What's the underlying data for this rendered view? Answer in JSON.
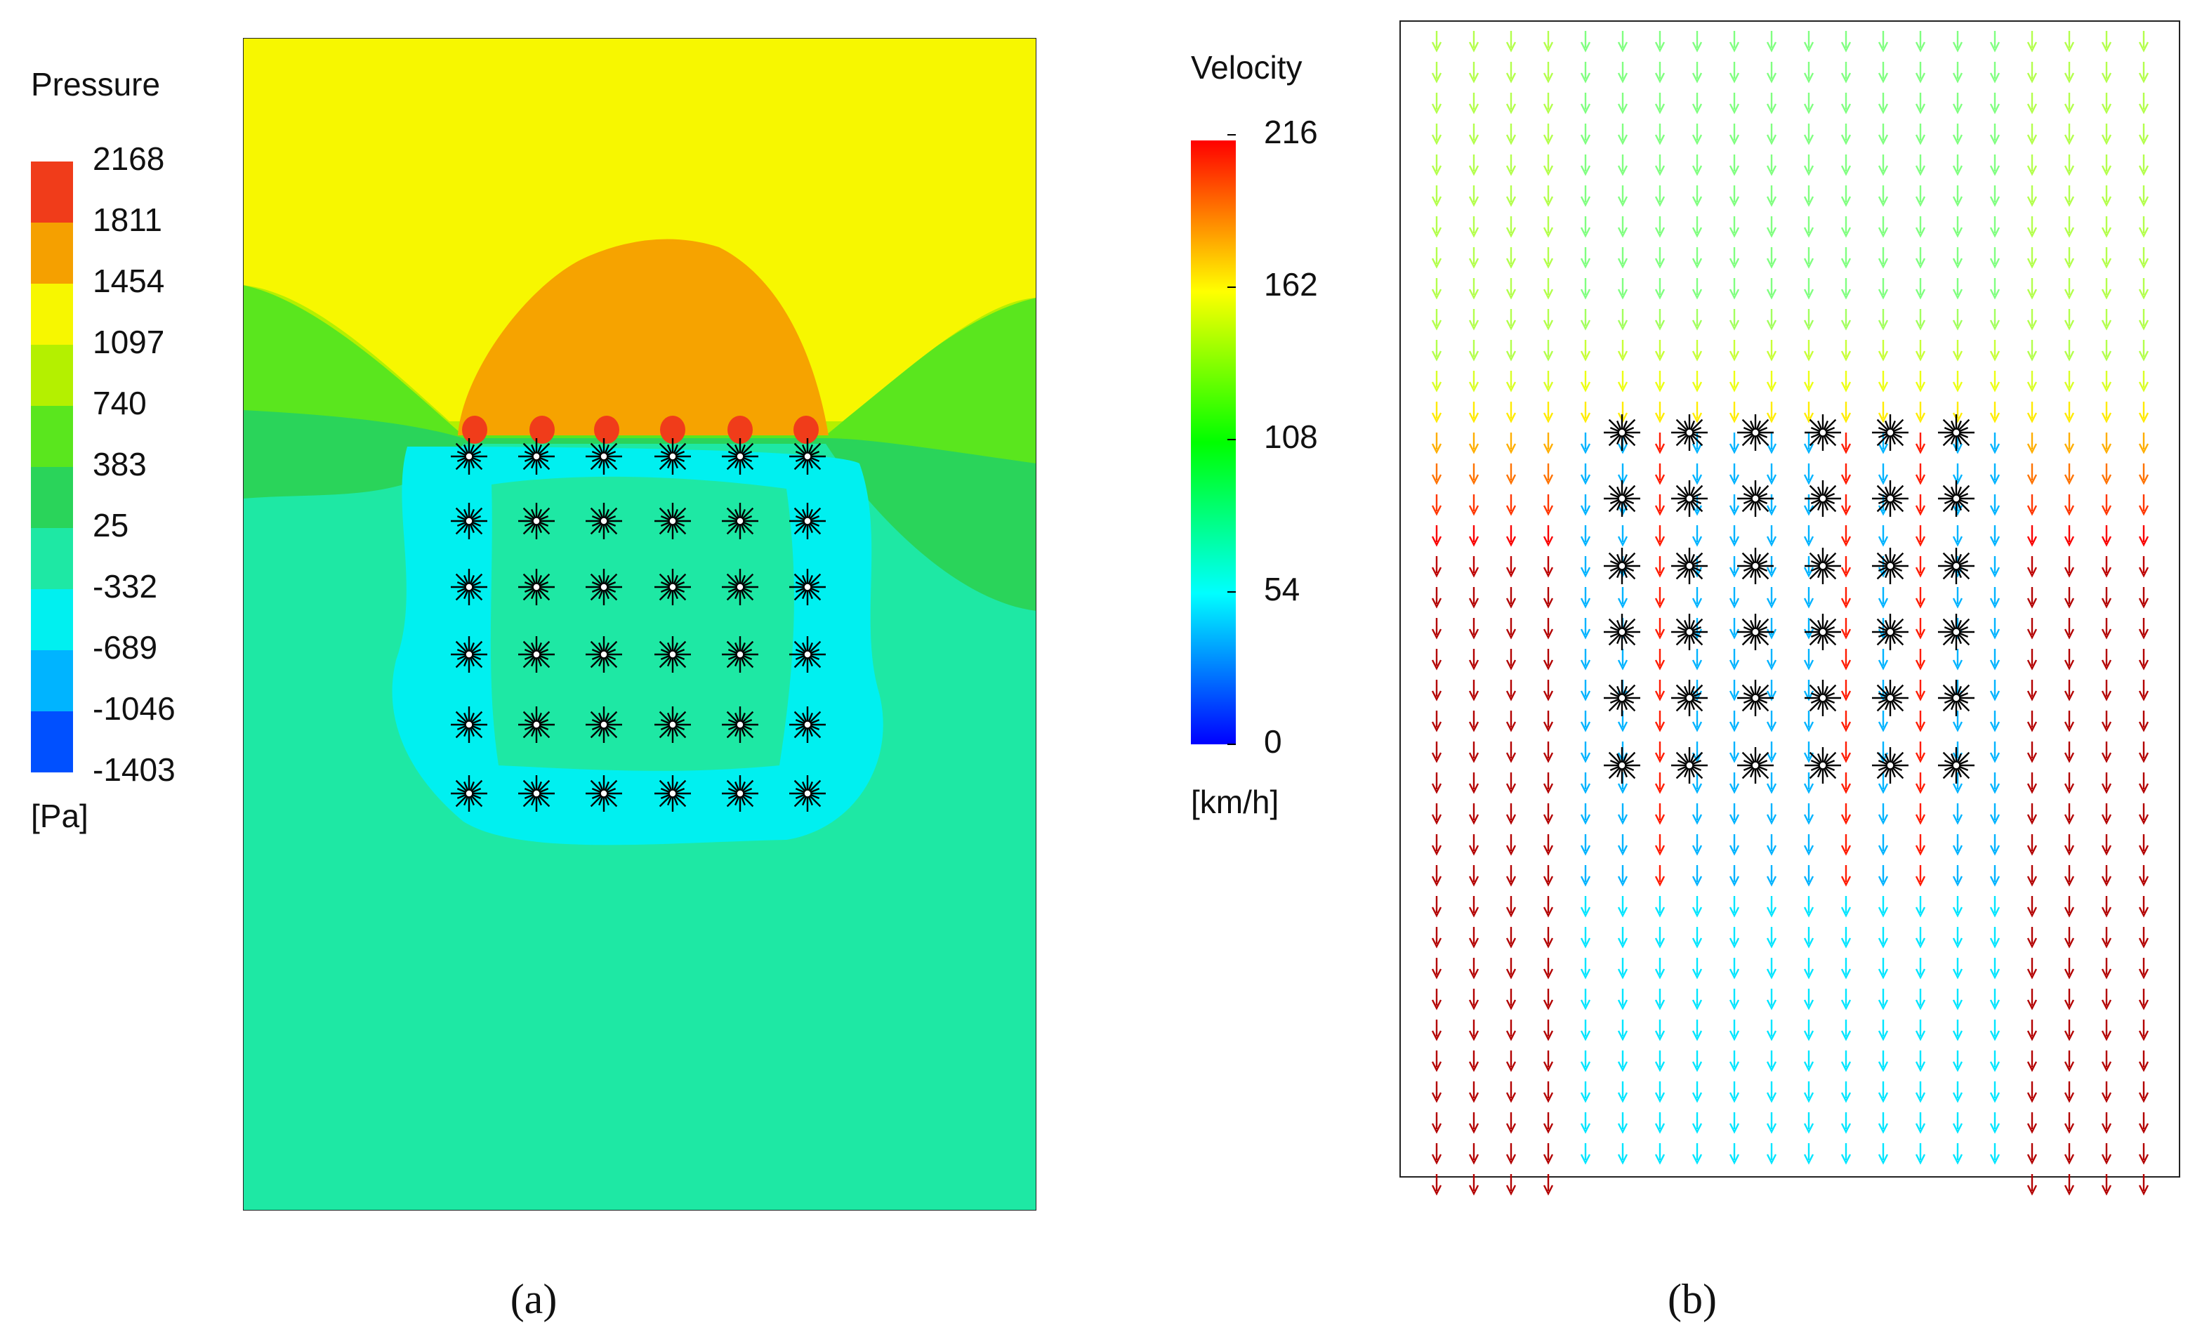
{
  "pressure_legend": {
    "title": "Pressure",
    "unit": "[Pa]",
    "ticks": [
      2168,
      1811,
      1454,
      1097,
      740,
      383,
      25,
      -332,
      -689,
      -1046,
      -1403
    ]
  },
  "velocity_legend": {
    "title": "Velocity",
    "unit": "[km/h]",
    "ticks": [
      216,
      162,
      108,
      54,
      0
    ]
  },
  "captions": [
    "(a)",
    "(b)"
  ]
}
